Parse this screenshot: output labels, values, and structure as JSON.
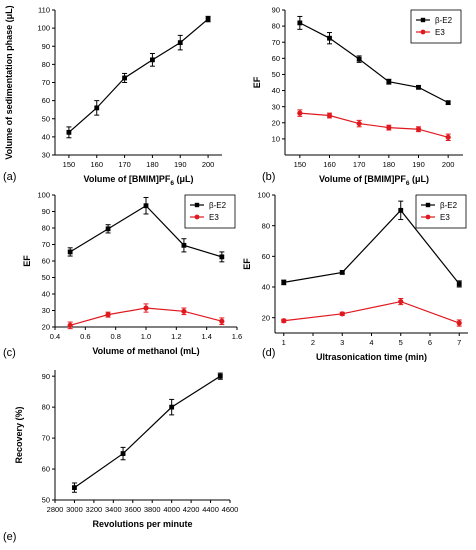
{
  "chart_data": [
    {
      "panel": "(a)",
      "type": "line",
      "xlabel": "Volume of [BMIM]PF",
      "xlabel_sub": "6",
      "xlabel_tail": " (μL)",
      "ylabel": "Volume of sedimentation phase (μL)",
      "xlim": [
        145,
        205
      ],
      "ylim": [
        30,
        110
      ],
      "xticks": [
        150,
        160,
        170,
        180,
        190,
        200
      ],
      "yticks": [
        30,
        40,
        50,
        60,
        70,
        80,
        90,
        100,
        110
      ],
      "series": [
        {
          "color": "#000000",
          "marker": "square",
          "x": [
            150,
            160,
            170,
            180,
            190,
            200
          ],
          "y": [
            42.5,
            56,
            72.5,
            82.5,
            92,
            105
          ],
          "err": [
            3,
            4,
            2.5,
            3.5,
            4,
            1.5
          ]
        }
      ]
    },
    {
      "panel": "(b)",
      "type": "line",
      "xlabel": "Volume of [BMIM]PF",
      "xlabel_sub": "6",
      "xlabel_tail": " (μL)",
      "ylabel": "EF",
      "xlim": [
        145,
        205
      ],
      "ylim": [
        0,
        90
      ],
      "xticks": [
        150,
        160,
        170,
        180,
        190,
        200
      ],
      "yticks": [
        10,
        20,
        30,
        40,
        50,
        60,
        70,
        80,
        90
      ],
      "legend_position": "top-right",
      "series": [
        {
          "name": "β-E2",
          "color": "#000000",
          "marker": "square",
          "x": [
            150,
            160,
            170,
            180,
            190,
            200
          ],
          "y": [
            82,
            72.5,
            59.5,
            45.5,
            42,
            32.5
          ],
          "err": [
            4,
            3.5,
            2,
            1.5,
            1,
            1
          ]
        },
        {
          "name": "E3",
          "color": "#e0191f",
          "marker": "circle",
          "x": [
            150,
            160,
            170,
            180,
            190,
            200
          ],
          "y": [
            26,
            24.5,
            19.5,
            17,
            16,
            11
          ],
          "err": [
            2,
            1.5,
            2,
            1.5,
            1.5,
            2
          ]
        }
      ]
    },
    {
      "panel": "(c)",
      "type": "line",
      "xlabel": "Volume of methanol (mL)",
      "ylabel": "EF",
      "xlim": [
        0.4,
        1.6
      ],
      "ylim": [
        20,
        100
      ],
      "xticks": [
        0.4,
        0.6,
        0.8,
        1.0,
        1.2,
        1.4,
        1.6
      ],
      "yticks": [
        20,
        30,
        40,
        50,
        60,
        70,
        80,
        90,
        100
      ],
      "legend_position": "top-right",
      "series": [
        {
          "name": "β-E2",
          "color": "#000000",
          "marker": "square",
          "x": [
            0.5,
            0.75,
            1.0,
            1.25,
            1.5
          ],
          "y": [
            65.5,
            79.5,
            93.5,
            69.5,
            62.5
          ],
          "err": [
            2.5,
            2.5,
            5,
            4,
            3
          ]
        },
        {
          "name": "E3",
          "color": "#e0191f",
          "marker": "circle",
          "x": [
            0.5,
            0.75,
            1.0,
            1.25,
            1.5
          ],
          "y": [
            21,
            27.5,
            31.5,
            29.5,
            23.5
          ],
          "err": [
            2,
            1.5,
            2.5,
            2,
            2
          ]
        }
      ]
    },
    {
      "panel": "(d)",
      "type": "line",
      "xlabel": "Ultrasonication time (min)",
      "ylabel": "EF",
      "xlim": [
        0.7,
        7.3
      ],
      "ylim": [
        10,
        100
      ],
      "xticks": [
        1,
        2,
        3,
        4,
        5,
        6,
        7
      ],
      "yticks": [
        20,
        40,
        60,
        80,
        100
      ],
      "legend_position": "top-right",
      "series": [
        {
          "name": "β-E2",
          "color": "#000000",
          "marker": "square",
          "x": [
            1,
            3,
            5,
            7
          ],
          "y": [
            43,
            49.5,
            90,
            42
          ],
          "err": [
            1.5,
            1,
            6,
            2
          ]
        },
        {
          "name": "E3",
          "color": "#e0191f",
          "marker": "circle",
          "x": [
            1,
            3,
            5,
            7
          ],
          "y": [
            18,
            22.5,
            30.5,
            16.5
          ],
          "err": [
            1,
            1,
            2,
            2
          ]
        }
      ]
    },
    {
      "panel": "(e)",
      "type": "line",
      "xlabel": "Revolutions per minute",
      "ylabel": "Recovery (%)",
      "xlim": [
        2800,
        4600
      ],
      "ylim": [
        50,
        92
      ],
      "xticks": [
        2800,
        3000,
        3200,
        3400,
        3600,
        3800,
        4000,
        4200,
        4400,
        4600
      ],
      "yticks": [
        50,
        60,
        70,
        80,
        90
      ],
      "series": [
        {
          "color": "#000000",
          "marker": "square",
          "x": [
            3000,
            3500,
            4000,
            4500
          ],
          "y": [
            54,
            65,
            80,
            90
          ],
          "err": [
            1.5,
            2,
            2.5,
            1
          ]
        }
      ]
    }
  ]
}
